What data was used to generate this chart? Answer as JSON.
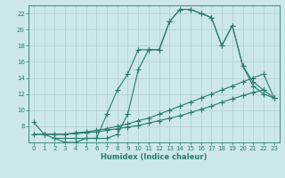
{
  "xlabel": "Humidex (Indice chaleur)",
  "bg_color": "#cce8e8",
  "grid_color": "#b0cccc",
  "line_color": "#2a7a70",
  "xlim": [
    -0.5,
    23.5
  ],
  "ylim": [
    6,
    23
  ],
  "yticks": [
    8,
    10,
    12,
    14,
    16,
    18,
    20,
    22
  ],
  "xticks": [
    0,
    1,
    2,
    3,
    4,
    5,
    6,
    7,
    8,
    9,
    10,
    11,
    12,
    13,
    14,
    15,
    16,
    17,
    18,
    19,
    20,
    21,
    22,
    23
  ],
  "line1_x": [
    0,
    1,
    2,
    3,
    4,
    5,
    6,
    7,
    8,
    9,
    10,
    11,
    12,
    13,
    14,
    15,
    16,
    17,
    18,
    19,
    20,
    21,
    22
  ],
  "line1_y": [
    8.5,
    7.0,
    6.5,
    6.5,
    6.5,
    6.5,
    6.5,
    9.5,
    12.5,
    14.5,
    17.5,
    17.5,
    17.5,
    21.0,
    22.5,
    22.5,
    22.0,
    21.5,
    18.0,
    20.5,
    15.5,
    13.5,
    12.5
  ],
  "line2_x": [
    2,
    3,
    4,
    5,
    6,
    7,
    8,
    9,
    10,
    11,
    12,
    13,
    14,
    15,
    16,
    17,
    18,
    19,
    20,
    21,
    22,
    23
  ],
  "line2_y": [
    6.5,
    6.0,
    6.0,
    6.5,
    6.5,
    6.5,
    7.0,
    9.5,
    15.0,
    17.5,
    17.5,
    21.0,
    22.5,
    22.5,
    22.0,
    21.5,
    18.0,
    20.5,
    15.5,
    13.0,
    12.0,
    11.5
  ],
  "line3_x": [
    0,
    1,
    2,
    3,
    4,
    5,
    6,
    7,
    8,
    9,
    10,
    11,
    12,
    13,
    14,
    15,
    16,
    17,
    18,
    19,
    20,
    21,
    22,
    23
  ],
  "line3_y": [
    7.0,
    7.0,
    7.0,
    7.0,
    7.2,
    7.3,
    7.5,
    7.7,
    8.0,
    8.3,
    8.7,
    9.0,
    9.5,
    10.0,
    10.5,
    11.0,
    11.5,
    12.0,
    12.5,
    13.0,
    13.5,
    14.0,
    14.5,
    11.5
  ],
  "line4_x": [
    0,
    1,
    2,
    3,
    4,
    5,
    6,
    7,
    8,
    9,
    10,
    11,
    12,
    13,
    14,
    15,
    16,
    17,
    18,
    19,
    20,
    21,
    22,
    23
  ],
  "line4_y": [
    7.0,
    7.0,
    7.0,
    7.0,
    7.1,
    7.2,
    7.3,
    7.5,
    7.7,
    7.9,
    8.1,
    8.4,
    8.7,
    9.0,
    9.3,
    9.7,
    10.1,
    10.5,
    11.0,
    11.4,
    11.8,
    12.2,
    12.5,
    11.5
  ]
}
